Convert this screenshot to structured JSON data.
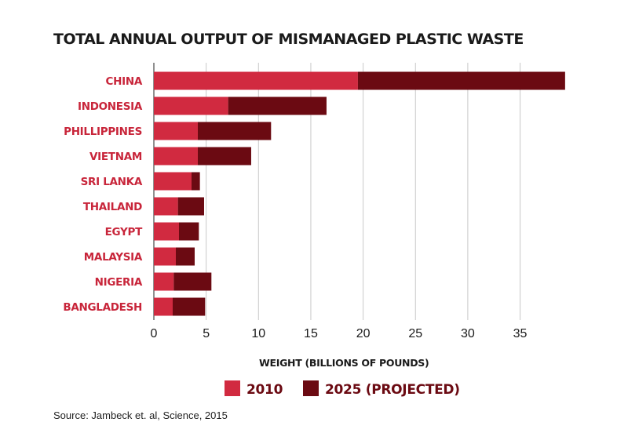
{
  "chart_data": {
    "type": "bar",
    "orientation": "horizontal",
    "stacked": true,
    "title": "TOTAL ANNUAL OUTPUT OF MISMANAGED PLASTIC WASTE",
    "xlabel": "WEIGHT (BILLIONS OF POUNDS)",
    "ylabel": "",
    "categories": [
      "CHINA",
      "INDONESIA",
      "PHILLIPPINES",
      "VIETNAM",
      "SRI LANKA",
      "THAILAND",
      "EGYPT",
      "MALAYSIA",
      "NIGERIA",
      "BANGLADESH"
    ],
    "series": [
      {
        "name": "2010",
        "color": "#d12a40",
        "values": [
          19.5,
          7.1,
          4.2,
          4.2,
          3.6,
          2.3,
          2.4,
          2.1,
          1.9,
          1.8
        ]
      },
      {
        "name": "2025 (PROJECTED)",
        "color": "#6b0a12",
        "values": [
          19.8,
          9.4,
          7.0,
          5.1,
          0.8,
          2.5,
          1.9,
          1.8,
          3.6,
          3.1
        ]
      }
    ],
    "xlim": [
      0,
      40
    ],
    "xticks": [
      0,
      5,
      10,
      15,
      20,
      25,
      30,
      35
    ],
    "grid": true,
    "legend_position": "bottom",
    "source": "Source: Jambeck et. al, Science, 2015"
  }
}
